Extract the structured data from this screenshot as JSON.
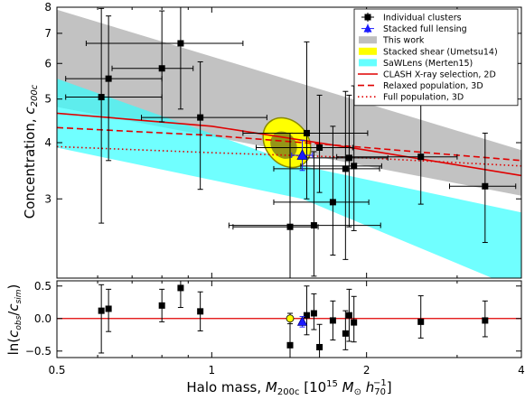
{
  "chart_data": [
    {
      "type": "scatter",
      "panel": "top",
      "xlabel_tex": "Halo mass, M_200c [10^15 M☉ h70^-1]",
      "ylabel": "Concentration, c200c",
      "ylabel_main": "Concentration, ",
      "ylabel_sym": "c",
      "ylabel_sub": "200c",
      "x_scale": "log",
      "y_scale": "log",
      "xlim": [
        0.5,
        4.0
      ],
      "ylim": [
        2.0,
        8.0
      ],
      "xticks": [
        0.5,
        1,
        2,
        4
      ],
      "xtick_labels": [
        "0.5",
        "1",
        "2",
        "4"
      ],
      "yticks": [
        3,
        4,
        5,
        6,
        7,
        8
      ],
      "ytick_labels": [
        "3",
        "4",
        "5",
        "6",
        "7",
        "8"
      ],
      "legend_position": "top-right",
      "legend": [
        {
          "label": "Individual clusters",
          "marker": "square-errorbar",
          "color": "#000000"
        },
        {
          "label": "Stacked full lensing",
          "marker": "triangle-errorbar",
          "color": "#1a1aff"
        },
        {
          "label": "This work",
          "marker": "patch",
          "color": "#bfbfbf"
        },
        {
          "label": "Stacked shear (Umetsu14)",
          "marker": "patch",
          "color": "#ffff00"
        },
        {
          "label": "SaWLens (Merten15)",
          "marker": "patch",
          "color": "#66ffff"
        },
        {
          "label": "CLASH X-ray selection, 2D",
          "marker": "line-solid",
          "color": "#e00000"
        },
        {
          "label": "Relaxed population, 3D",
          "marker": "line-dashed",
          "color": "#e00000"
        },
        {
          "label": "Full population, 3D",
          "marker": "line-dotted",
          "color": "#e00000"
        }
      ],
      "series": [
        {
          "name": "Individual clusters",
          "color": "#000000",
          "points": [
            {
              "x": 0.61,
              "y": 5.05,
              "xerr": [
                0.09,
                0.19
              ],
              "yerr": [
                2.4,
                2.9
              ]
            },
            {
              "x": 0.63,
              "y": 5.55,
              "xerr": [
                0.11,
                0.17
              ],
              "yerr": [
                1.9,
                2.1
              ]
            },
            {
              "x": 0.8,
              "y": 5.85,
              "xerr": [
                0.16,
                0.12
              ],
              "yerr": [
                1.4,
                2.0
              ]
            },
            {
              "x": 0.87,
              "y": 6.65,
              "xerr": [
                0.3,
                0.28
              ],
              "yerr": [
                1.9,
                1.6
              ]
            },
            {
              "x": 0.95,
              "y": 4.55,
              "xerr": [
                0.22,
                0.33
              ],
              "yerr": [
                1.4,
                1.5
              ]
            },
            {
              "x": 1.42,
              "y": 2.6,
              "xerr": [
                0.32,
                0.19
              ],
              "yerr": [
                0.6,
                1.6
              ]
            },
            {
              "x": 1.53,
              "y": 4.2,
              "xerr": [
                0.38,
                0.48
              ],
              "yerr": [
                1.2,
                2.5
              ]
            },
            {
              "x": 1.58,
              "y": 2.62,
              "xerr": [
                0.5,
                0.55
              ],
              "yerr": [
                0.6,
                1.2
              ]
            },
            {
              "x": 1.62,
              "y": 3.9,
              "xerr": [
                0.4,
                0.26
              ],
              "yerr": [
                0.8,
                1.2
              ]
            },
            {
              "x": 1.72,
              "y": 2.95,
              "xerr": [
                0.4,
                0.3
              ],
              "yerr": [
                0.7,
                1.4
              ]
            },
            {
              "x": 1.82,
              "y": 3.5,
              "xerr": [
                0.5,
                0.3
              ],
              "yerr": [
                1.3,
                1.7
              ]
            },
            {
              "x": 1.85,
              "y": 3.7,
              "xerr": [
                0.35,
                0.35
              ],
              "yerr": [
                1.1,
                1.4
              ]
            },
            {
              "x": 1.89,
              "y": 3.55,
              "xerr": [
                0.4,
                0.25
              ],
              "yerr": [
                1.0,
                1.8
              ]
            },
            {
              "x": 2.55,
              "y": 3.72,
              "xerr": [
                0.8,
                0.45
              ],
              "yerr": [
                0.8,
                1.6
              ]
            },
            {
              "x": 3.4,
              "y": 3.2,
              "xerr": [
                0.5,
                0.5
              ],
              "yerr": [
                0.8,
                1.0
              ]
            }
          ]
        },
        {
          "name": "Stacked full lensing",
          "color": "#1a1aff",
          "points": [
            {
              "x": 1.5,
              "y": 3.75,
              "xerr": [
                0.07,
                0.07
              ],
              "yerr": [
                0.28,
                0.3
              ]
            }
          ]
        }
      ],
      "bands": [
        {
          "name": "This work",
          "color": "#999999",
          "opacity": 0.6,
          "upper": [
            [
              0.5,
              7.9
            ],
            [
              4.0,
              3.85
            ]
          ],
          "lower": [
            [
              0.5,
              4.8
            ],
            [
              4.0,
              3.05
            ]
          ]
        },
        {
          "name": "SaWLens (Merten15)",
          "color": "#33ffff",
          "opacity": 0.7,
          "upper": [
            [
              0.5,
              5.55
            ],
            [
              1.5,
              3.55
            ],
            [
              4.0,
              2.8
            ]
          ],
          "lower": [
            [
              0.5,
              3.9
            ],
            [
              1.5,
              3.0
            ],
            [
              4.0,
              1.88
            ]
          ]
        }
      ],
      "ellipses": [
        {
          "name": "Stacked shear (Umetsu14) outer",
          "color": "#ffff00",
          "edge": "#8a8a00",
          "x": 1.4,
          "y": 4.0,
          "sigma_logx": 0.095,
          "sigma_logy": 0.138,
          "tilt_deg": 40
        },
        {
          "name": "Stacked shear (Umetsu14) inner",
          "color": "#3f3f2a",
          "opacity": 0.55,
          "x": 1.38,
          "y": 3.95,
          "sigma_logx": 0.055,
          "sigma_logy": 0.075,
          "tilt_deg": 40
        }
      ],
      "lines": [
        {
          "name": "CLASH X-ray selection, 2D",
          "style": "solid",
          "color": "#e00000",
          "points": [
            [
              0.5,
              4.65
            ],
            [
              1.0,
              4.35
            ],
            [
              2.0,
              3.85
            ],
            [
              4.0,
              3.38
            ]
          ]
        },
        {
          "name": "Relaxed population, 3D",
          "style": "dashed",
          "color": "#e00000",
          "points": [
            [
              0.5,
              4.32
            ],
            [
              1.0,
              4.15
            ],
            [
              2.0,
              3.9
            ],
            [
              4.0,
              3.65
            ]
          ]
        },
        {
          "name": "Full population, 3D",
          "style": "dotted",
          "color": "#e00000",
          "points": [
            [
              0.5,
              3.92
            ],
            [
              1.0,
              3.8
            ],
            [
              2.0,
              3.7
            ],
            [
              4.0,
              3.55
            ]
          ]
        }
      ]
    },
    {
      "type": "scatter",
      "panel": "bottom",
      "xlabel": "Halo mass, M200c [10^15 M☉ h70^-1]",
      "xlabel_main": "Halo mass, ",
      "xlabel_sym": "M",
      "xlabel_sub": "200c",
      "xlabel_units_open": " [10",
      "xlabel_units_exp": "15",
      "xlabel_units_mass": " M",
      "xlabel_units_msub": "⊙",
      "xlabel_units_h": " h",
      "xlabel_units_hsub": "70",
      "xlabel_units_hexp": "−1",
      "xlabel_units_close": "]",
      "ylabel": "ln(c_obs/c_sim)",
      "ylabel_parts": {
        "pre": "ln(",
        "c1": "c",
        "s1": "obs",
        "slash": "/",
        "c2": "c",
        "s2": "sim",
        "post": ")"
      },
      "x_scale": "log",
      "xlim": [
        0.5,
        4.0
      ],
      "ylim": [
        -0.6,
        0.58
      ],
      "yticks": [
        -0.5,
        0.0,
        0.5
      ],
      "ytick_labels": [
        "−0.5",
        "0.0",
        "0.5"
      ],
      "reference_line": {
        "y": 0.0,
        "color": "#e00000"
      },
      "series": [
        {
          "name": "Individual clusters",
          "color": "#000000",
          "points": [
            {
              "x": 0.61,
              "y": 0.12,
              "yerr": [
                0.65,
                0.4
              ]
            },
            {
              "x": 0.63,
              "y": 0.15,
              "yerr": [
                0.35,
                0.3
              ]
            },
            {
              "x": 0.8,
              "y": 0.2,
              "yerr": [
                0.25,
                0.25
              ]
            },
            {
              "x": 0.87,
              "y": 0.47,
              "yerr": [
                0.3,
                0.25
              ]
            },
            {
              "x": 0.95,
              "y": 0.11,
              "yerr": [
                0.3,
                0.3
              ]
            },
            {
              "x": 1.42,
              "y": -0.41,
              "yerr": [
                0.25,
                0.45
              ]
            },
            {
              "x": 1.53,
              "y": 0.05,
              "yerr": [
                0.3,
                0.45
              ]
            },
            {
              "x": 1.58,
              "y": 0.08,
              "yerr": [
                0.25,
                0.3
              ]
            },
            {
              "x": 1.62,
              "y": -0.44,
              "yerr": [
                0.25,
                0.35
              ]
            },
            {
              "x": 1.72,
              "y": -0.03,
              "yerr": [
                0.3,
                0.3
              ]
            },
            {
              "x": 1.82,
              "y": -0.23,
              "yerr": [
                0.25,
                0.35
              ]
            },
            {
              "x": 1.85,
              "y": 0.05,
              "yerr": [
                0.4,
                0.4
              ]
            },
            {
              "x": 1.89,
              "y": -0.06,
              "yerr": [
                0.3,
                0.4
              ]
            },
            {
              "x": 2.55,
              "y": -0.05,
              "yerr": [
                0.25,
                0.4
              ]
            },
            {
              "x": 3.4,
              "y": -0.03,
              "yerr": [
                0.25,
                0.3
              ]
            }
          ]
        },
        {
          "name": "Stacked shear (Umetsu14)",
          "marker": "circle",
          "color": "#ffff00",
          "points": [
            {
              "x": 1.42,
              "y": 0.0,
              "yerr": [
                0.08,
                0.08
              ]
            }
          ]
        },
        {
          "name": "Stacked full lensing",
          "marker": "triangle",
          "color": "#1a1aff",
          "points": [
            {
              "x": 1.5,
              "y": -0.05,
              "yerr": [
                0.08,
                0.08
              ]
            }
          ]
        }
      ]
    }
  ]
}
